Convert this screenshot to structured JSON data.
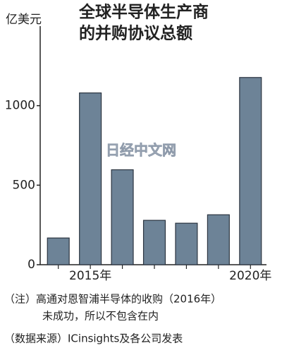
{
  "chart_data": {
    "type": "bar",
    "title_lines": [
      "全球半导体生产商",
      "的并购协议总额"
    ],
    "unit": "亿美元",
    "watermark": "日经中文网",
    "categories": [
      null,
      "2015年",
      null,
      null,
      null,
      null,
      "2020年"
    ],
    "values": [
      168,
      1080,
      597,
      279,
      261,
      314,
      1177
    ],
    "color": "#6d8397",
    "ylim": [
      0,
      1500
    ],
    "yticks": [
      0,
      500,
      1000
    ],
    "notes": [
      "（注）高通对恩智浦半导体的收购（2016年）",
      "未成功，所以不包含在内",
      "（数据来源）ICinsights及各公司发表"
    ]
  }
}
